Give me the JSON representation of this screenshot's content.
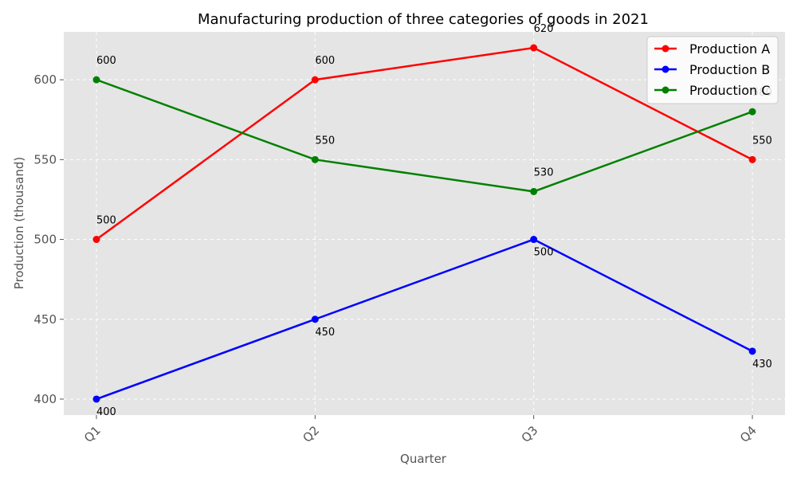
{
  "chart_data": {
    "type": "line",
    "title": "Manufacturing production of three categories of goods in 2021",
    "xlabel": "Quarter",
    "ylabel": "Production (thousand)",
    "categories": [
      "Q1",
      "Q2",
      "Q3",
      "Q4"
    ],
    "ylim": [
      390,
      630
    ],
    "yticks": [
      400,
      450,
      500,
      550,
      600
    ],
    "grid": true,
    "legend_position": "top-right",
    "series": [
      {
        "name": "Production A",
        "color": "#ff0000",
        "values": [
          500,
          600,
          620,
          550
        ],
        "label_position": "above"
      },
      {
        "name": "Production B",
        "color": "#0000ff",
        "values": [
          400,
          450,
          500,
          430
        ],
        "label_position": "below"
      },
      {
        "name": "Production C",
        "color": "#008000",
        "values": [
          600,
          550,
          530,
          580
        ],
        "label_position": "above"
      }
    ],
    "plot_background": "#e5e5e5"
  }
}
